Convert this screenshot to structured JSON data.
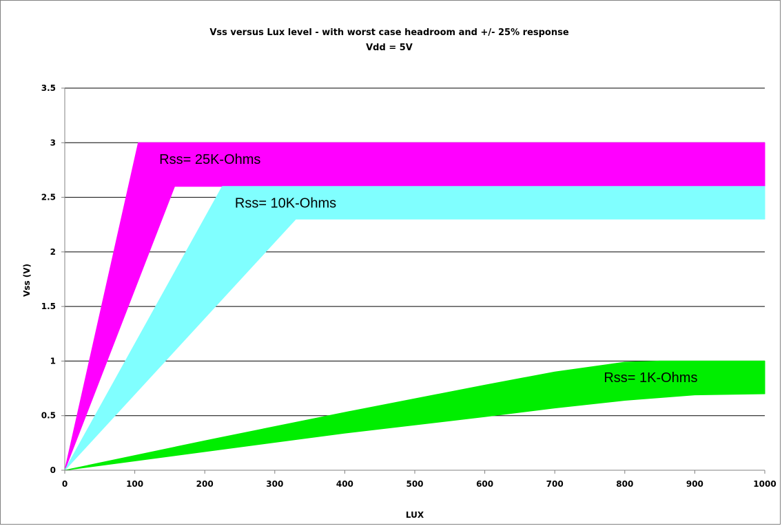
{
  "chart_data": {
    "type": "area",
    "title": "Vss versus Lux level - with worst case headroom and  +/- 25% response",
    "subtitle": "Vdd = 5V",
    "xlabel": "LUX",
    "ylabel": "Vss (V)",
    "xlim": [
      0,
      1000
    ],
    "ylim": [
      0,
      3.5
    ],
    "x_ticks": [
      "0",
      "100",
      "200",
      "300",
      "400",
      "500",
      "600",
      "700",
      "800",
      "900",
      "1000"
    ],
    "y_ticks": [
      "0",
      "0.5",
      "1",
      "1.5",
      "2",
      "2.5",
      "3",
      "3.5"
    ],
    "grid": "horizontal",
    "series": [
      {
        "name": "Rss= 25K-Ohms",
        "color": "#ff00ff",
        "upper": [
          [
            0,
            0
          ],
          [
            105,
            3.0
          ],
          [
            1000,
            3.0
          ]
        ],
        "lower": [
          [
            0,
            0
          ],
          [
            157,
            2.6
          ],
          [
            1000,
            2.6
          ]
        ]
      },
      {
        "name": "Rss= 10K-Ohms",
        "color": "#80ffff",
        "upper": [
          [
            0,
            0
          ],
          [
            225,
            2.6
          ],
          [
            1000,
            2.6
          ]
        ],
        "lower": [
          [
            0,
            0
          ],
          [
            330,
            2.3
          ],
          [
            1000,
            2.3
          ]
        ]
      },
      {
        "name": "Rss= 1K-Ohms",
        "color": "#00ee00",
        "upper": [
          [
            0,
            0
          ],
          [
            200,
            0.27
          ],
          [
            400,
            0.53
          ],
          [
            600,
            0.78
          ],
          [
            700,
            0.9
          ],
          [
            800,
            0.99
          ],
          [
            850,
            1.0
          ],
          [
            1000,
            1.0
          ]
        ],
        "lower": [
          [
            0,
            0
          ],
          [
            200,
            0.17
          ],
          [
            400,
            0.34
          ],
          [
            600,
            0.49
          ],
          [
            700,
            0.57
          ],
          [
            800,
            0.64
          ],
          [
            900,
            0.69
          ],
          [
            1000,
            0.7
          ]
        ]
      }
    ],
    "annotations": [
      {
        "text": "Rss= 25K-Ohms",
        "x": 135,
        "y": 2.85
      },
      {
        "text": "Rss= 10K-Ohms",
        "x": 243,
        "y": 2.45
      },
      {
        "text": "Rss= 1K-Ohms",
        "x": 770,
        "y": 0.85
      }
    ]
  }
}
